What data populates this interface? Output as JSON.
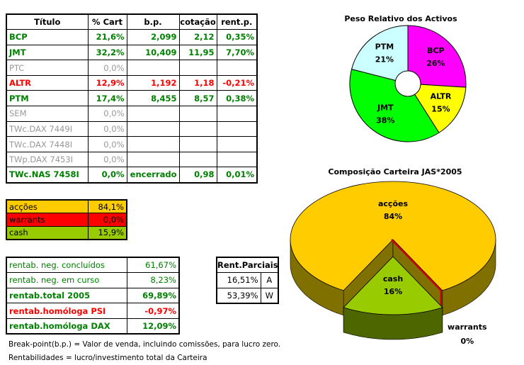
{
  "main_table": {
    "header": [
      "Título",
      "% Cart",
      "b.p.",
      "cotação",
      "rent.p."
    ],
    "rows": [
      {
        "color": "#008000",
        "bold": true,
        "cells": [
          "BCP",
          "21,6%",
          "2,099",
          "2,12",
          "0,35%"
        ]
      },
      {
        "color": "#008000",
        "bold": true,
        "cells": [
          "JMT",
          "32,2%",
          "10,409",
          "11,95",
          "7,70%"
        ]
      },
      {
        "color": "#999999",
        "bold": false,
        "cells": [
          "PTC",
          "0,0%",
          null,
          null,
          null
        ]
      },
      {
        "color": "#ff0000",
        "bold": true,
        "cells": [
          "ALTR",
          "12,9%",
          "1,192",
          "1,18",
          "-0,21%"
        ]
      },
      {
        "color": "#008000",
        "bold": true,
        "cells": [
          "PTM",
          "17,4%",
          "8,455",
          "8,57",
          "0,38%"
        ]
      },
      {
        "color": "#999999",
        "bold": false,
        "cells": [
          "SEM",
          "0,0%",
          null,
          null,
          null
        ]
      },
      {
        "color": "#999999",
        "bold": false,
        "cells": [
          "TWc.DAX 7449I",
          "0,0%",
          null,
          null,
          null
        ]
      },
      {
        "color": "#999999",
        "bold": false,
        "cells": [
          "TWc.DAX 7448I",
          "0,0%",
          null,
          null,
          null
        ]
      },
      {
        "color": "#999999",
        "bold": false,
        "cells": [
          "TWp.DAX 7453I",
          "0,0%",
          null,
          null,
          null
        ]
      },
      {
        "color": "#008000",
        "bold": true,
        "cells": [
          "TWc.NAS 7458I",
          "0,0%",
          "encerrado",
          "0,98",
          "0,01%"
        ]
      }
    ]
  },
  "allocation_table": {
    "rows": [
      {
        "background": "#ffcc00",
        "cells": [
          "acções",
          "84,1%"
        ]
      },
      {
        "background": "#ff0000",
        "cells": [
          "warrants",
          "0,0%"
        ]
      },
      {
        "background": "#99cc00",
        "cells": [
          "cash",
          "15,9%"
        ]
      }
    ]
  },
  "returns_table": {
    "rows": [
      {
        "color": "#008000",
        "bold": false,
        "cells": [
          "rentab. neg. concluídos",
          "61,67%"
        ]
      },
      {
        "color": "#008000",
        "bold": false,
        "cells": [
          "rentab. neg. em curso",
          "8,23%"
        ]
      },
      {
        "color": "#008000",
        "bold": true,
        "cells": [
          "rentab.total 2005",
          "69,89%"
        ]
      },
      {
        "color": "#ff0000",
        "bold": true,
        "cells": [
          "rentab.homóloga PSI",
          "-0,97%"
        ]
      },
      {
        "color": "#008000",
        "bold": true,
        "cells": [
          "rentab.homóloga DAX",
          "12,09%"
        ]
      }
    ]
  },
  "partial_returns": {
    "header": "Rent.Parciais",
    "rows": [
      [
        "16,51%",
        "A"
      ],
      [
        "53,39%",
        "W"
      ]
    ]
  },
  "notes": [
    "Break-point(b.p.) = Valor de venda, incluindo comissões, para lucro zero.",
    "Rentabilidades = lucro/investimento total da Carteira"
  ],
  "chart_data": [
    {
      "type": "donut",
      "title": "Peso Relativo dos Activos",
      "categories": [
        "BCP",
        "ALTR",
        "JMT",
        "PTM"
      ],
      "values": [
        26,
        15,
        38,
        21
      ],
      "value_labels": [
        "26%",
        "15%",
        "38%",
        "21%"
      ],
      "colors": [
        "#ff00ff",
        "#ffff00",
        "#00ff00",
        "#ccffff"
      ]
    },
    {
      "type": "pie3d",
      "title": "Composição Carteira JAS*2005",
      "categories": [
        "acções",
        "warrants",
        "cash"
      ],
      "values": [
        84,
        0,
        16
      ],
      "value_labels": [
        "84%",
        "0%",
        "16%"
      ],
      "colors": [
        "#ffcc00",
        "#cc0000",
        "#99cc00"
      ],
      "side_colors": [
        "#807000",
        "#800000",
        "#4d6600"
      ],
      "exploded": [
        false,
        false,
        true
      ]
    }
  ]
}
